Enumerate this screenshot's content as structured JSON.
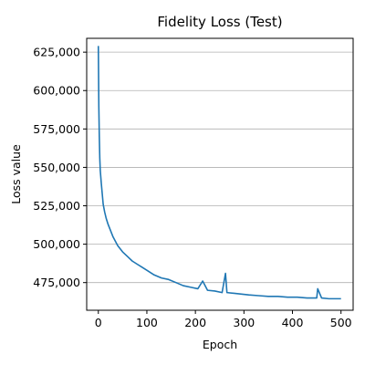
{
  "chart_data": {
    "type": "line",
    "title": "Fidelity Loss (Test)",
    "xlabel": "Epoch",
    "ylabel": "Loss value",
    "xlim": [
      -24,
      525
    ],
    "ylim": [
      457000,
      634000
    ],
    "x_ticks": [
      0,
      100,
      200,
      300,
      400,
      500
    ],
    "x_tick_labels": [
      "0",
      "100",
      "200",
      "300",
      "400",
      "500"
    ],
    "y_ticks": [
      475000,
      500000,
      525000,
      550000,
      575000,
      600000,
      625000
    ],
    "y_tick_labels": [
      "475,000",
      "500,000",
      "525,000",
      "550,000",
      "575,000",
      "600,000",
      "625,000"
    ],
    "grid": "horizontal",
    "colors": {
      "line": "#1f77b4",
      "grid": "#b0b0b0",
      "axis": "#000000"
    },
    "series": [
      {
        "x": [
          0,
          1,
          2,
          3,
          4,
          6,
          8,
          10,
          13,
          16,
          20,
          25,
          30,
          35,
          40,
          50,
          60,
          70,
          80,
          90,
          100,
          115,
          130,
          145,
          160,
          175,
          190,
          205,
          215,
          225,
          240,
          255,
          262,
          265,
          280,
          295,
          310,
          330,
          350,
          370,
          390,
          410,
          430,
          450,
          452,
          460,
          475,
          490,
          500
        ],
        "y": [
          629000,
          590000,
          570000,
          556000,
          548000,
          540000,
          533000,
          526000,
          521000,
          517000,
          513000,
          509000,
          505000,
          502000,
          499000,
          495000,
          492000,
          489000,
          487000,
          485000,
          483000,
          480000,
          478000,
          477000,
          475000,
          473000,
          472000,
          471000,
          476000,
          470000,
          469500,
          468500,
          481000,
          468500,
          468000,
          467500,
          467000,
          466500,
          466000,
          466000,
          465500,
          465500,
          465000,
          465000,
          471000,
          465000,
          464500,
          464500,
          464500
        ]
      }
    ]
  }
}
